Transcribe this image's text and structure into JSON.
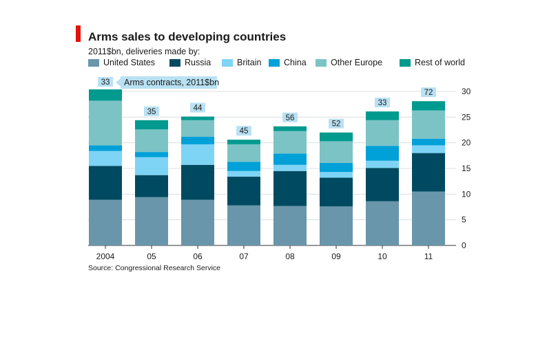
{
  "header": {
    "title": "Arms sales to developing countries",
    "subtitle": "2011$bn, deliveries made by:"
  },
  "annotation": {
    "label": "Arms contracts, 2011$bn"
  },
  "footer": {
    "source": "Source: Congressional Research Service"
  },
  "chart_data": {
    "type": "bar",
    "stacked": true,
    "categories": [
      "2004",
      "05",
      "06",
      "07",
      "08",
      "09",
      "10",
      "11"
    ],
    "series": [
      {
        "name": "United States",
        "color": "#6996ab",
        "values": [
          8.9,
          9.4,
          8.9,
          7.8,
          7.7,
          7.6,
          8.6,
          10.5
        ]
      },
      {
        "name": "Russia",
        "color": "#004a61",
        "values": [
          6.6,
          4.3,
          6.8,
          5.6,
          6.8,
          5.6,
          6.5,
          7.5
        ]
      },
      {
        "name": "Britain",
        "color": "#7ed4f5",
        "values": [
          2.9,
          3.5,
          4.0,
          1.1,
          1.2,
          1.1,
          1.4,
          1.5
        ]
      },
      {
        "name": "China",
        "color": "#00a0d8",
        "values": [
          1.1,
          1.0,
          1.5,
          1.8,
          2.2,
          1.8,
          2.9,
          1.3
        ]
      },
      {
        "name": "Other Europe",
        "color": "#7cc3c5",
        "values": [
          8.7,
          4.4,
          3.2,
          3.4,
          4.4,
          4.2,
          5.0,
          5.5
        ]
      },
      {
        "name": "Rest of world",
        "color": "#009a8e",
        "values": [
          2.2,
          1.8,
          0.7,
          0.9,
          0.9,
          1.7,
          1.7,
          1.8
        ]
      }
    ],
    "contracts": [
      33,
      35,
      44,
      45,
      56,
      52,
      33,
      72
    ],
    "contracts_box_color": "#b9e1f3",
    "ylim": [
      0,
      30
    ],
    "yticks": [
      0,
      5,
      10,
      15,
      20,
      25,
      30
    ],
    "y_axis_side": "right",
    "grid": true,
    "legend_placement": "top"
  }
}
